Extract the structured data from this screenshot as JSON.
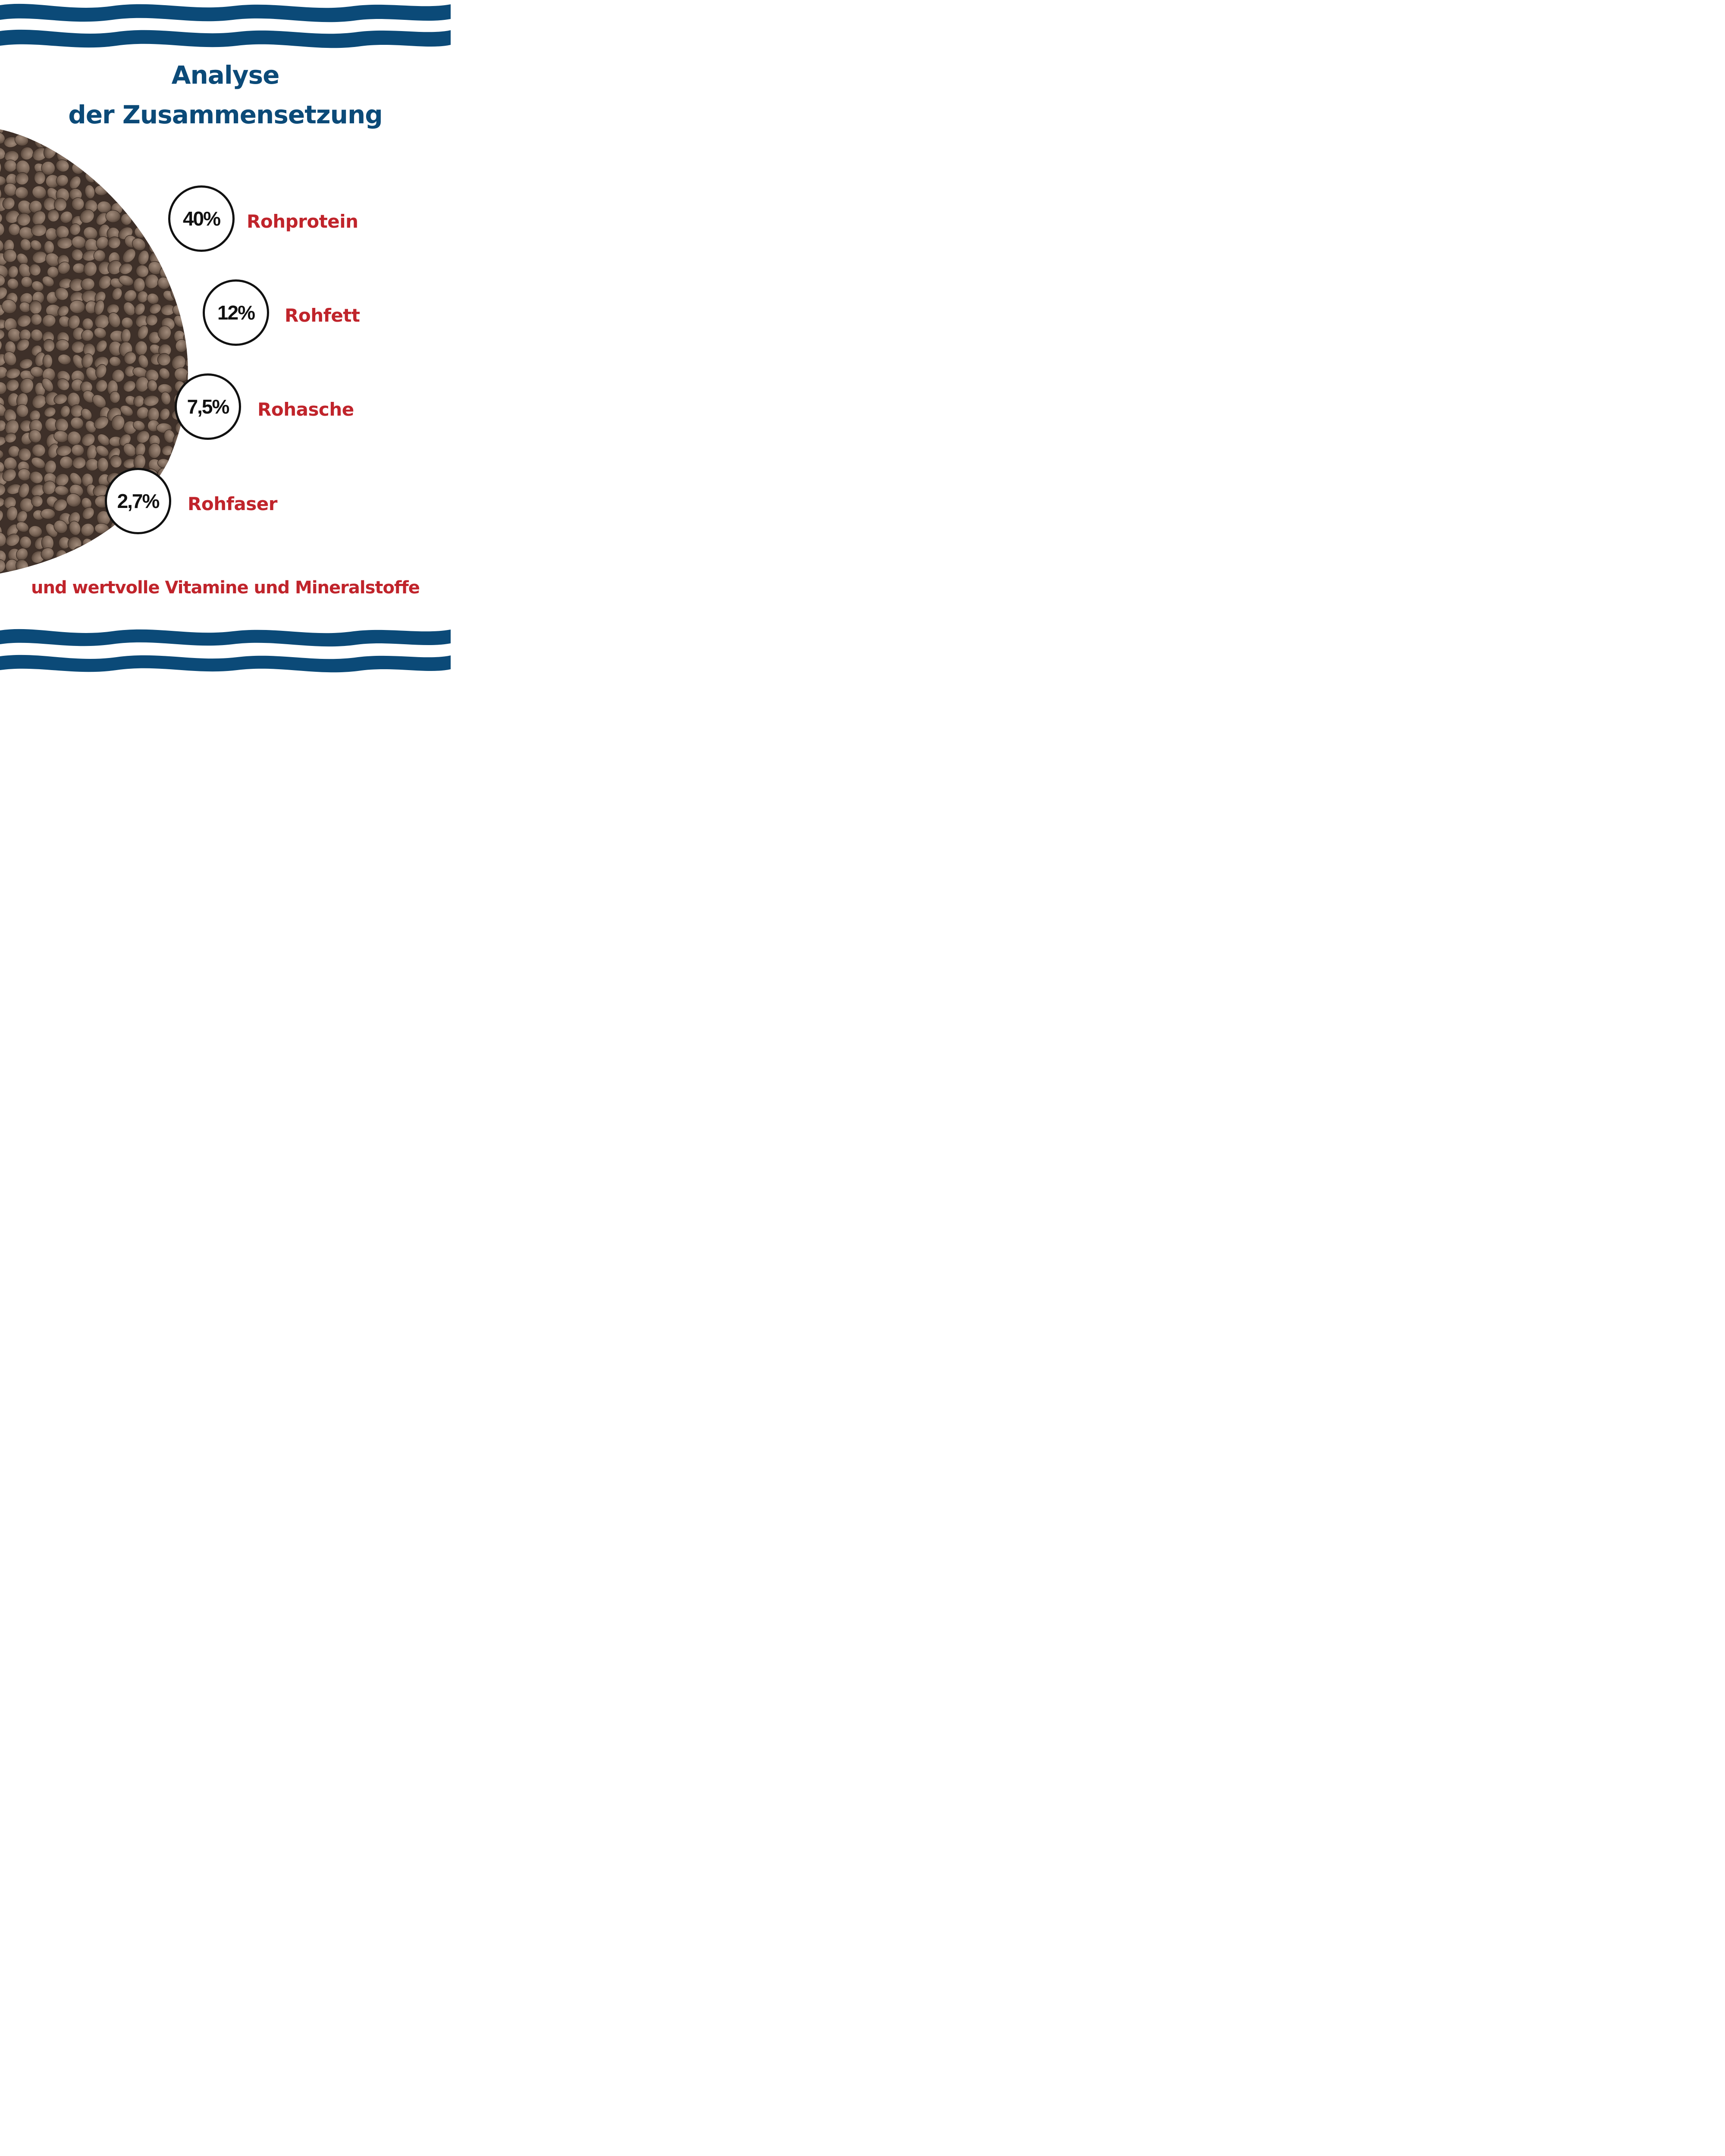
{
  "colors": {
    "wave": "#0b4a78",
    "title": "#0b4a78",
    "label": "#c0242b",
    "value": "#111111",
    "pellet_base": "#7a6658"
  },
  "header": {
    "title_line_1": "Analyse",
    "title_line_2": "der Zusammensetzung"
  },
  "stats": [
    {
      "value": "40%",
      "label": "Rohprotein"
    },
    {
      "value": "12%",
      "label": "Rohfett"
    },
    {
      "value": "7,5%",
      "label": "Rohasche"
    },
    {
      "value": "2,7%",
      "label": "Rohfaser"
    }
  ],
  "footer": {
    "note": "und wertvolle Vitamine und Mineralstoffe"
  }
}
